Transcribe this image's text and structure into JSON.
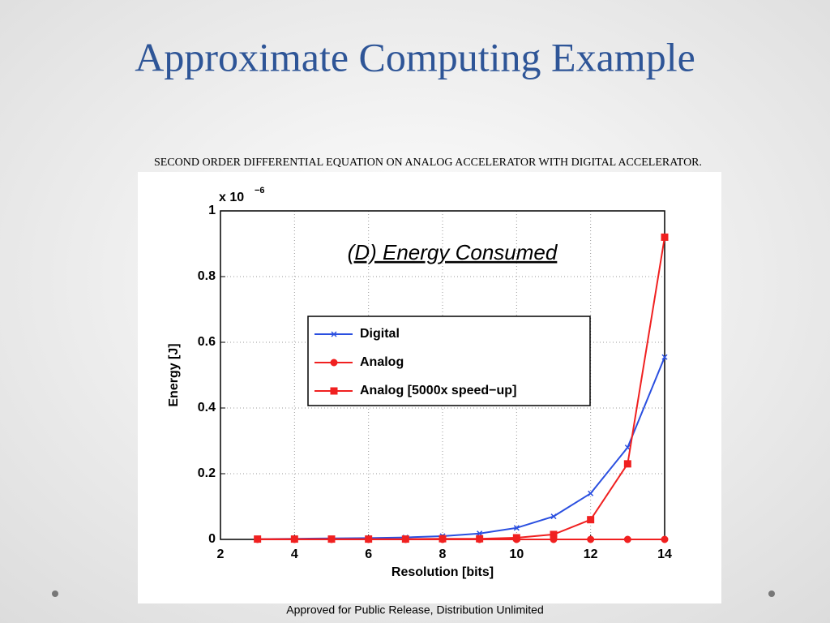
{
  "slide": {
    "title": "Approximate Computing Example",
    "subtitle": "SECOND ORDER DIFFERENTIAL EQUATION ON ANALOG ACCELERATOR WITH DIGITAL ACCELERATOR.",
    "footer": "Approved for Public Release, Distribution Unlimited"
  },
  "chart_data": {
    "type": "line",
    "title": "(D) Energy Consumed",
    "x_label": "Resolution [bits]",
    "y_label": "Energy [J]",
    "multiplier": "x 10",
    "multiplier_exponent": "−6",
    "x": [
      3,
      4,
      5,
      6,
      7,
      8,
      9,
      10,
      11,
      12,
      13,
      14
    ],
    "series": [
      {
        "name": "Digital",
        "color": "#2a4fe0",
        "marker": "x",
        "values": [
          0.001,
          0.002,
          0.003,
          0.004,
          0.006,
          0.01,
          0.018,
          0.035,
          0.07,
          0.14,
          0.28,
          0.555
        ]
      },
      {
        "name": "Analog",
        "color": "#f02020",
        "marker": "circle",
        "values": [
          0,
          0,
          0,
          0,
          0,
          0,
          0,
          0,
          0,
          0,
          0,
          0
        ]
      },
      {
        "name": "Analog [5000x speed−up]",
        "color": "#f02020",
        "marker": "square",
        "values": [
          0.001,
          0.001,
          0.001,
          0.001,
          0.001,
          0.002,
          0.002,
          0.005,
          0.015,
          0.06,
          0.23,
          0.92
        ]
      }
    ],
    "xlim": [
      2,
      14
    ],
    "xticks": [
      2,
      4,
      6,
      8,
      10,
      12,
      14
    ],
    "ylim": [
      0,
      1
    ],
    "yticks": [
      0,
      0.2,
      0.4,
      0.6,
      0.8,
      1
    ],
    "grid": true,
    "legend": "center"
  }
}
